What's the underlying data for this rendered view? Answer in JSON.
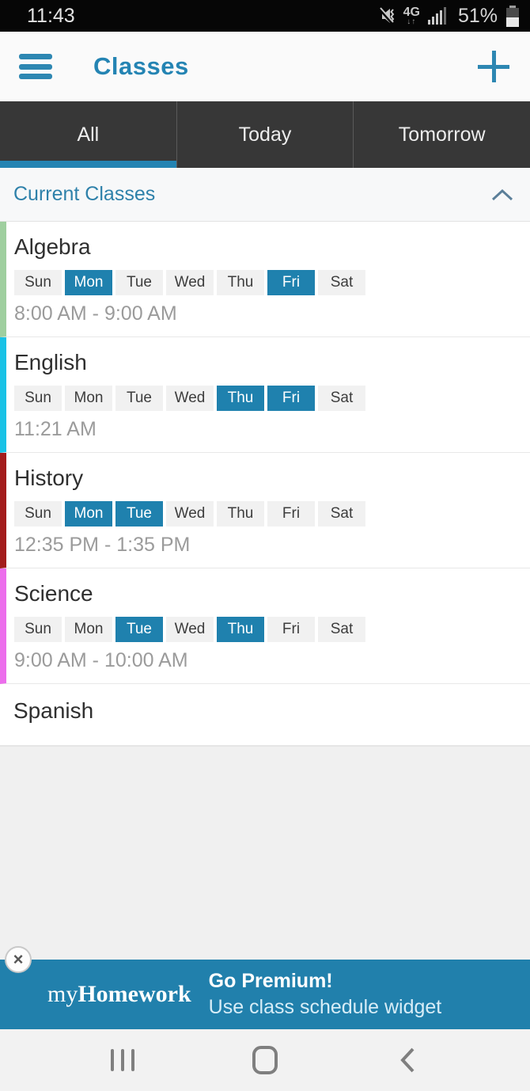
{
  "status_bar": {
    "time": "11:43",
    "network_label": "4G",
    "network_arrows": "↓↑",
    "battery_percent": "51%",
    "icons": [
      "vibrate-mute",
      "lte-data",
      "signal-strength",
      "battery-half"
    ]
  },
  "header": {
    "title": "Classes",
    "menu_icon": "hamburger-menu",
    "add_icon": "plus"
  },
  "tabs": [
    {
      "label": "All",
      "active": true
    },
    {
      "label": "Today",
      "active": false
    },
    {
      "label": "Tomorrow",
      "active": false
    }
  ],
  "section": {
    "title": "Current Classes",
    "collapse_icon": "chevron-up"
  },
  "days": [
    "Sun",
    "Mon",
    "Tue",
    "Wed",
    "Thu",
    "Fri",
    "Sat"
  ],
  "classes": [
    {
      "name": "Algebra",
      "color": "#9fcf9f",
      "active_days": [
        "Mon",
        "Fri"
      ],
      "time": "8:00 AM - 9:00 AM",
      "has_schedule": true
    },
    {
      "name": "English",
      "color": "#19c2e6",
      "active_days": [
        "Thu",
        "Fri"
      ],
      "time": "11:21 AM",
      "has_schedule": true
    },
    {
      "name": "History",
      "color": "#a31c1c",
      "active_days": [
        "Mon",
        "Tue"
      ],
      "time": "12:35 PM - 1:35 PM",
      "has_schedule": true
    },
    {
      "name": "Science",
      "color": "#ec6eec",
      "active_days": [
        "Tue",
        "Thu"
      ],
      "time": "9:00 AM - 10:00 AM",
      "has_schedule": true
    },
    {
      "name": "Spanish",
      "color": null,
      "active_days": [],
      "time": null,
      "has_schedule": false
    }
  ],
  "ad_banner": {
    "logo_prefix": "my",
    "logo_suffix": "Homework",
    "headline": "Go Premium!",
    "subtext": "Use class schedule widget",
    "close_label": "×"
  },
  "nav_bar": {
    "buttons": [
      "recents",
      "home",
      "back"
    ]
  },
  "colors": {
    "accent": "#2484b3",
    "chip_active": "#1f81ae",
    "banner_bg": "#2180ac",
    "tab_bar_bg": "#373737",
    "status_bar_bg": "#060606"
  }
}
